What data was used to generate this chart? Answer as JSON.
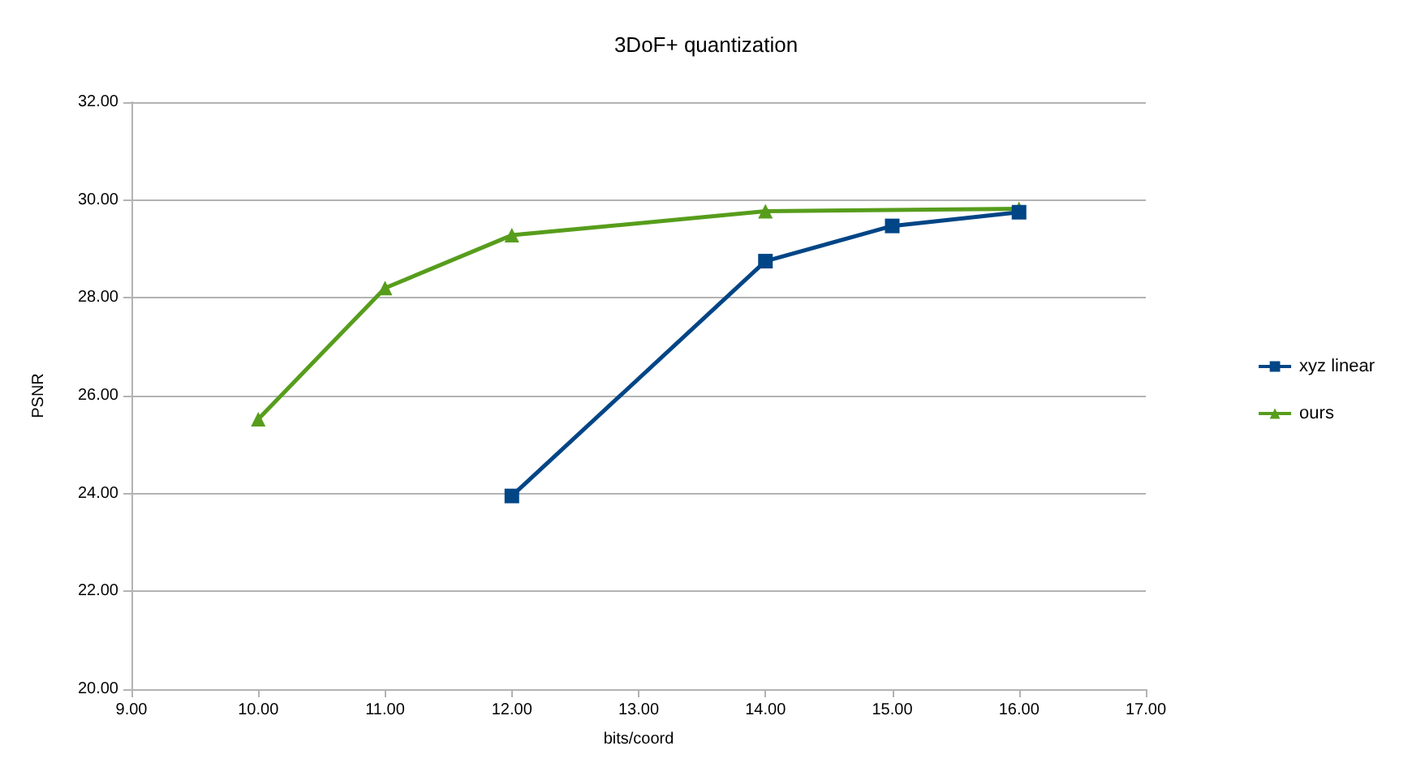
{
  "chart_data": {
    "type": "line",
    "title": "3DoF+ quantization",
    "xlabel": "bits/coord",
    "ylabel": "PSNR",
    "xlim": [
      9,
      17
    ],
    "xticks": [
      {
        "value": 9,
        "label": "9.00"
      },
      {
        "value": 10,
        "label": "10.00"
      },
      {
        "value": 11,
        "label": "11.00"
      },
      {
        "value": 12,
        "label": "12.00"
      },
      {
        "value": 13,
        "label": "13.00"
      },
      {
        "value": 14,
        "label": "14.00"
      },
      {
        "value": 15,
        "label": "15.00"
      },
      {
        "value": 16,
        "label": "16.00"
      },
      {
        "value": 17,
        "label": "17.00"
      }
    ],
    "ylim": [
      20,
      32
    ],
    "yticks": [
      {
        "value": 20,
        "label": "20.00"
      },
      {
        "value": 22,
        "label": "22.00"
      },
      {
        "value": 24,
        "label": "24.00"
      },
      {
        "value": 26,
        "label": "26.00"
      },
      {
        "value": 28,
        "label": "28.00"
      },
      {
        "value": 30,
        "label": "30.00"
      },
      {
        "value": 32,
        "label": "32.00"
      }
    ],
    "grid": "y",
    "legend": "right",
    "line_style": "solid",
    "series": [
      {
        "name": "xyz linear",
        "color": "#004586",
        "marker": "square",
        "x": [
          12,
          14,
          15,
          16
        ],
        "values": [
          23.95,
          28.75,
          29.47,
          29.75
        ]
      },
      {
        "name": "ours",
        "color": "#579d1c",
        "marker": "triangle",
        "x": [
          10,
          11,
          12,
          14,
          16
        ],
        "values": [
          25.52,
          28.2,
          29.28,
          29.77,
          29.82
        ]
      }
    ]
  }
}
